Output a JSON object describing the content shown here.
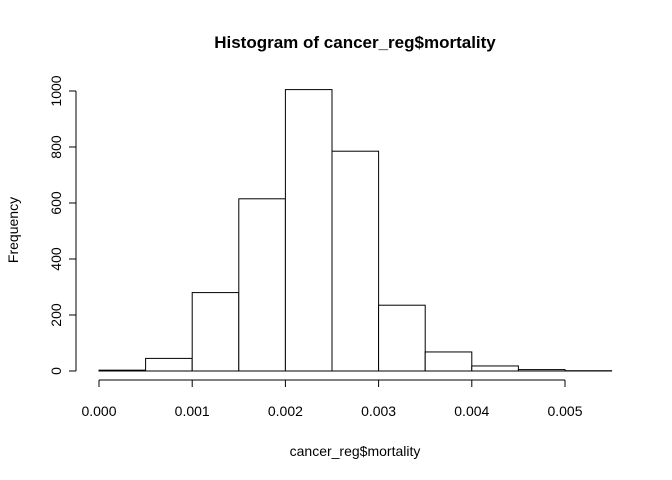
{
  "chart_data": {
    "type": "bar",
    "title": "Histogram of cancer_reg$mortality",
    "xlabel": "cancer_reg$mortality",
    "ylabel": "Frequency",
    "bins": [
      {
        "start": 0.0,
        "end": 0.0005,
        "count": 3
      },
      {
        "start": 0.0005,
        "end": 0.001,
        "count": 45
      },
      {
        "start": 0.001,
        "end": 0.0015,
        "count": 280
      },
      {
        "start": 0.0015,
        "end": 0.002,
        "count": 615
      },
      {
        "start": 0.002,
        "end": 0.0025,
        "count": 1005
      },
      {
        "start": 0.0025,
        "end": 0.003,
        "count": 785
      },
      {
        "start": 0.003,
        "end": 0.0035,
        "count": 235
      },
      {
        "start": 0.0035,
        "end": 0.004,
        "count": 68
      },
      {
        "start": 0.004,
        "end": 0.0045,
        "count": 18
      },
      {
        "start": 0.0045,
        "end": 0.005,
        "count": 5
      },
      {
        "start": 0.005,
        "end": 0.0055,
        "count": 1
      }
    ],
    "xlim": [
      0.0,
      0.0055
    ],
    "ylim": [
      0,
      1000
    ],
    "x_ticks": [
      {
        "value": 0.0,
        "label": "0.000"
      },
      {
        "value": 0.001,
        "label": "0.001"
      },
      {
        "value": 0.002,
        "label": "0.002"
      },
      {
        "value": 0.003,
        "label": "0.003"
      },
      {
        "value": 0.004,
        "label": "0.004"
      },
      {
        "value": 0.005,
        "label": "0.005"
      }
    ],
    "y_ticks": [
      {
        "value": 0,
        "label": "0"
      },
      {
        "value": 200,
        "label": "200"
      },
      {
        "value": 400,
        "label": "400"
      },
      {
        "value": 600,
        "label": "600"
      },
      {
        "value": 800,
        "label": "800"
      },
      {
        "value": 1000,
        "label": "1000"
      }
    ],
    "grid": false,
    "bar_fill": "#ffffff",
    "bar_stroke": "#000000"
  }
}
